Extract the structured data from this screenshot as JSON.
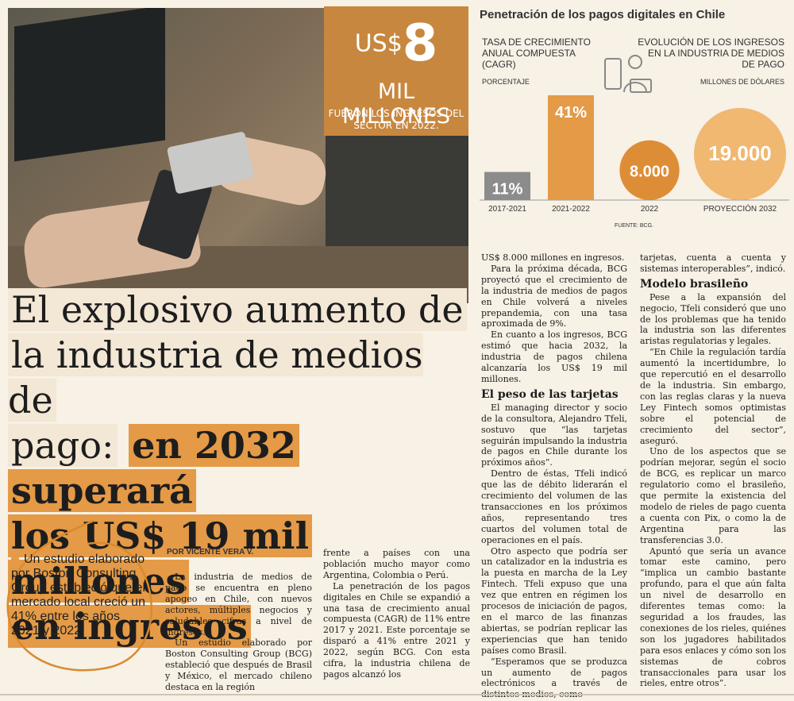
{
  "kpi": {
    "currency": "US$",
    "number": "8",
    "unit": "MIL MILLONES",
    "caption_line1": "FUERON LOS INGRESOS DEL",
    "caption_line2": "SECTOR EN 2022."
  },
  "headline": {
    "plain_line1": "El explosivo aumento de",
    "plain_line2": "la industria de medios de",
    "plain_line3": "pago:",
    "hl_part1": "en 2032 superará",
    "hl_part2": "los US$ 19 mil millones",
    "hl_part3": "en ingresos"
  },
  "chart": {
    "title": "Penetración de los pagos digitales en Chile",
    "left_label_line1": "TASA DE CRECIMIENTO",
    "left_label_line2": "ANUAL COMPUESTA",
    "left_label_line3": "(CAGR)",
    "left_unit": "PORCENTAJE",
    "right_label_line1": "EVOLUCIÓN DE LOS INGRESOS",
    "right_label_line2": "EN LA INDUSTRIA DE MEDIOS",
    "right_label_line3": "DE PAGO",
    "right_unit": "MILLONES DE DÓLARES",
    "source": "FUENTE: BCG."
  },
  "chart_data": [
    {
      "type": "bar",
      "categories": [
        "2017-2021",
        "2021-2022"
      ],
      "values": [
        11,
        41
      ],
      "value_labels": [
        "11%",
        "41%"
      ],
      "colors": [
        "#8c8c8c",
        "#e49a46"
      ]
    },
    {
      "type": "scatter",
      "categories": [
        "2022",
        "PROYECCIÓN 2032"
      ],
      "values": [
        8000,
        19000
      ],
      "value_labels": [
        "8.000",
        "19.000"
      ],
      "colors": [
        "#de8d37",
        "#f0b870"
      ]
    }
  ],
  "byline": "POR VICENTE VERA V.",
  "summary": "Un estudio elaborado por Boston Consulting Group estableció que el mercado local creció un 41% entre los años 2021 y 2022.",
  "col1": {
    "p1": "La industria de medios de pago se encuentra en pleno apogeo en Chile, con nuevos actores, múltiples negocios y saludables cifras a nivel de ingresos.",
    "p2": "Un estudio elaborado por Boston Consulting Group (BCG) estableció que después de Brasil y México, el mercado chileno destaca en la región"
  },
  "col2": {
    "p1": "frente a países con una población mucho mayor como Argentina, Colombia o Perú.",
    "p2": "La penetración de los pagos digitales en Chile se expandió a una tasa de crecimiento anual compuesta (CAGR) de 11% entre 2017 y 2021. Este porcentaje se disparó a 41% entre 2021 y 2022, según BCG. Con esta cifra, la industria chilena de pagos alcanzó los"
  },
  "col3": {
    "p1": "US$ 8.000 millones en ingresos.",
    "p2": "Para la próxima década, BCG proyectó que el crecimiento de la industria de medios de pagos en Chile volverá a niveles prepandemia, con una tasa aproximada de 9%.",
    "p3": "En cuanto a los ingresos, BCG estimó que hacia 2032, la industria de pagos chilena alcanzaría los US$ 19 mil millones.",
    "h1": "El peso de las tarjetas",
    "p4": "El managing director y socio de la consultora, Alejandro Tfeli, sostuvo que “las tarjetas seguirán impulsando la industria de pagos en Chile durante los próximos años”.",
    "p5": "Dentro de éstas, Tfeli indicó que las de débito liderarán el crecimiento del volumen de las transacciones en los próximos años, representando tres cuartos del volumen total de operaciones en el país.",
    "p6": "Otro aspecto que podría ser un catalizador en la industria es la puesta en marcha de la Ley Fintech. Tfeli expuso que una vez que entren en régimen los procesos de iniciación de pagos, en el marco de las finanzas abiertas, se podrían replicar las experiencias que han tenido países como Brasil.",
    "p7": "“Esperamos que se produzca un aumento de pagos electrónicos a través de distintos medios, como"
  },
  "col4": {
    "p1": "tarjetas, cuenta a cuenta y sistemas interoperables”, indicó.",
    "h1": "Modelo brasileño",
    "p2": "Pese a la expansión del negocio, Tfeli consideró que uno de los problemas que ha tenido la industria son las diferentes aristas regulatorias y legales.",
    "p3": "“En Chile la regulación tardía aumentó la incertidumbre, lo que repercutió en el desarrollo de la industria. Sin embargo, con las reglas claras y la nueva Ley Fintech somos optimistas sobre el potencial de crecimiento del sector”, aseguró.",
    "p4": "Uno de los aspectos que se podrían mejorar, según el socio de BCG, es replicar un marco regulatorio como el brasileño, que permite la existencia del modelo de rieles de pago cuenta a cuenta con Pix, o como la de Argentina para las transferencias 3.0.",
    "p5": "Apuntó que sería un avance tomar este camino, pero “implica un cambio bastante profundo, para el que aún falta un nivel de desarrollo en diferentes temas como: la seguridad a los fraudes, las conexiones de los rieles, quiénes son los jugadores habilitados para esos enlaces y cómo son los sistemas de cobros transaccionales para usar los rieles, entre otros”."
  }
}
